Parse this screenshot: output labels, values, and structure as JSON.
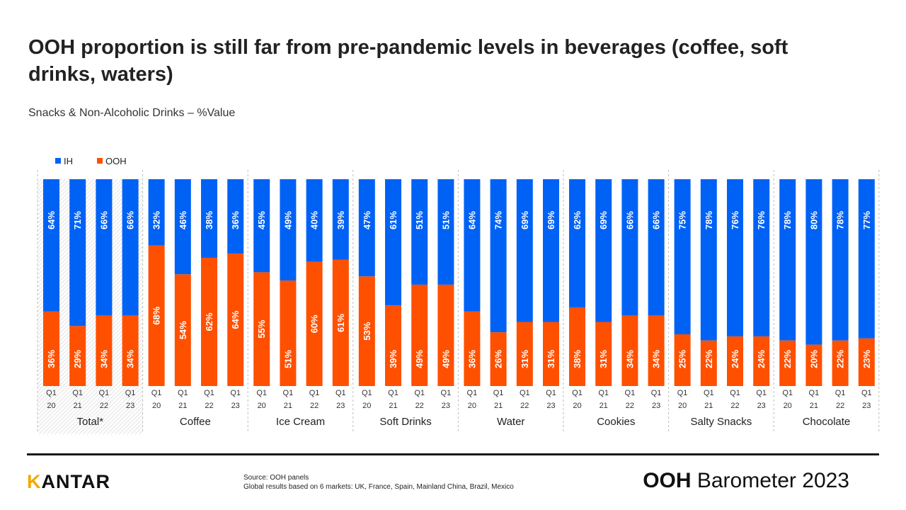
{
  "header": {
    "title": "OOH proportion is still far from pre-pandemic levels in beverages (coffee, soft drinks, waters)",
    "subtitle": "Snacks & Non-Alcoholic Drinks – %Value"
  },
  "footer": {
    "brand_k": "K",
    "brand_rest": "ANTAR",
    "source_line1": "Source: OOH panels",
    "source_line2": "Global results based on 6 markets: UK, France, Spain, Mainland China, Brazil, Mexico",
    "report_bold": "OOH",
    "report_rest": " Barometer 2023"
  },
  "colors": {
    "IH": "#0062f5",
    "OOH": "#ff5000"
  },
  "chart_data": {
    "type": "bar",
    "stacked": true,
    "percent": true,
    "legend_position": "top-left",
    "ylim": [
      0,
      100
    ],
    "series_names": [
      "IH",
      "OOH"
    ],
    "period_labels": [
      [
        "Q1",
        "20"
      ],
      [
        "Q1",
        "21"
      ],
      [
        "Q1",
        "22"
      ],
      [
        "Q1",
        "23"
      ]
    ],
    "groups": [
      {
        "name": "Total*",
        "ooh": [
          36,
          29,
          34,
          34
        ],
        "ih": [
          64,
          71,
          66,
          66
        ]
      },
      {
        "name": "Coffee",
        "ooh": [
          68,
          54,
          62,
          64
        ],
        "ih": [
          32,
          46,
          38,
          36
        ]
      },
      {
        "name": "Ice Cream",
        "ooh": [
          55,
          51,
          60,
          61
        ],
        "ih": [
          45,
          49,
          40,
          39
        ]
      },
      {
        "name": "Soft Drinks",
        "ooh": [
          53,
          39,
          49,
          49
        ],
        "ih": [
          47,
          61,
          51,
          51
        ]
      },
      {
        "name": "Water",
        "ooh": [
          36,
          26,
          31,
          31
        ],
        "ih": [
          64,
          74,
          69,
          69
        ]
      },
      {
        "name": "Cookies",
        "ooh": [
          38,
          31,
          34,
          34
        ],
        "ih": [
          62,
          69,
          66,
          66
        ]
      },
      {
        "name": "Salty Snacks",
        "ooh": [
          25,
          22,
          24,
          24
        ],
        "ih": [
          75,
          78,
          76,
          76
        ]
      },
      {
        "name": "Chocolate",
        "ooh": [
          22,
          20,
          22,
          23
        ],
        "ih": [
          78,
          80,
          78,
          77
        ]
      }
    ]
  }
}
